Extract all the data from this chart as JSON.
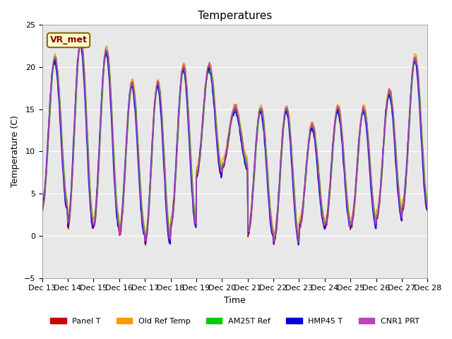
{
  "title": "Temperatures",
  "xlabel": "Time",
  "ylabel": "Temperature (C)",
  "ylim": [
    -5,
    25
  ],
  "annotation": "VR_met",
  "background_color": "#e8e8e8",
  "series_names": [
    "Panel T",
    "Old Ref Temp",
    "AM25T Ref",
    "HMP45 T",
    "CNR1 PRT"
  ],
  "series_colors": [
    "#cc0000",
    "#ff9900",
    "#00cc00",
    "#0000dd",
    "#bb44bb"
  ],
  "series_lw": [
    1.2,
    1.2,
    1.2,
    1.2,
    1.2
  ],
  "xtick_labels": [
    "Dec 13",
    "Dec 14",
    "Dec 15",
    "Dec 16",
    "Dec 17",
    "Dec 18",
    "Dec 19",
    "Dec 20",
    "Dec 21",
    "Dec 22",
    "Dec 23",
    "Dec 24",
    "Dec 25",
    "Dec 26",
    "Dec 27",
    "Dec 28"
  ],
  "n_days": 15,
  "pts_per_day": 48,
  "day_peaks": [
    21,
    23,
    22,
    18,
    18,
    20,
    20,
    15,
    15,
    15,
    13,
    15,
    15,
    17,
    21
  ],
  "night_lows": [
    3,
    1,
    1,
    0,
    -1,
    1,
    7,
    8,
    0,
    -1,
    1,
    1,
    1,
    2,
    3
  ],
  "peak_offsets": [
    0.0,
    0.5,
    0.0,
    -0.3,
    0.2
  ],
  "low_offsets": [
    0.0,
    1.0,
    0.5,
    0.0,
    0.3
  ],
  "phase_offsets": [
    0.0,
    0.0,
    -0.2,
    0.5,
    0.1
  ]
}
